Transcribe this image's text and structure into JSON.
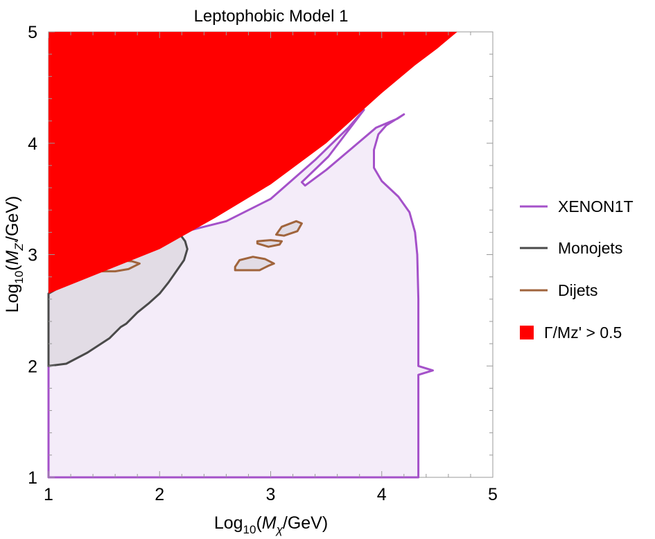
{
  "chart_data": {
    "type": "area",
    "title": "Leptophobic Model 1",
    "xlabel": {
      "prefix": "Log",
      "sub": "10",
      "open": "(",
      "sym": "M",
      "symsub": "χ",
      "suffix": "/GeV)"
    },
    "ylabel": {
      "prefix": "Log",
      "sub": "10",
      "open": "(",
      "sym": "M",
      "symsub": "Z'",
      "suffix": "/GeV)"
    },
    "xlim": [
      1,
      5
    ],
    "ylim": [
      1,
      5
    ],
    "xticks": [
      1,
      2,
      3,
      4,
      5
    ],
    "yticks": [
      1,
      2,
      3,
      4,
      5
    ],
    "minor_ticks_per_major": 5,
    "grid": false,
    "legend_position": "right",
    "series": [
      {
        "name": "XENON1T",
        "kind": "region",
        "color": "#a451c9",
        "fill": "#f4ecf9",
        "boundary": [
          [
            1.0,
            1.0
          ],
          [
            4.33,
            1.0
          ],
          [
            4.33,
            1.92
          ],
          [
            4.46,
            1.96
          ],
          [
            4.33,
            2.0
          ],
          [
            4.33,
            2.6
          ],
          [
            4.32,
            3.0
          ],
          [
            4.3,
            3.2
          ],
          [
            4.25,
            3.38
          ],
          [
            4.15,
            3.52
          ],
          [
            4.0,
            3.66
          ],
          [
            3.93,
            3.78
          ],
          [
            3.93,
            3.94
          ],
          [
            3.97,
            4.08
          ],
          [
            4.04,
            4.16
          ],
          [
            4.2,
            4.26
          ],
          [
            4.14,
            4.22
          ],
          [
            3.95,
            4.14
          ],
          [
            3.76,
            3.98
          ],
          [
            3.5,
            3.76
          ],
          [
            3.31,
            3.62
          ],
          [
            3.28,
            3.65
          ],
          [
            3.52,
            3.88
          ],
          [
            3.84,
            4.3
          ],
          [
            3.7,
            4.14
          ],
          [
            3.4,
            3.85
          ],
          [
            3.0,
            3.5
          ],
          [
            2.6,
            3.3
          ],
          [
            2.2,
            3.2
          ],
          [
            1.8,
            3.0
          ],
          [
            1.4,
            2.85
          ],
          [
            1.0,
            2.65
          ]
        ]
      },
      {
        "name": "Monojets",
        "kind": "region",
        "color": "#4a4a4a",
        "fill": "#e2dce5",
        "boundary": [
          [
            1.0,
            2.0
          ],
          [
            1.16,
            2.02
          ],
          [
            1.35,
            2.12
          ],
          [
            1.55,
            2.25
          ],
          [
            1.65,
            2.35
          ],
          [
            1.7,
            2.38
          ],
          [
            1.8,
            2.48
          ],
          [
            1.9,
            2.56
          ],
          [
            2.0,
            2.65
          ],
          [
            2.08,
            2.75
          ],
          [
            2.15,
            2.85
          ],
          [
            2.22,
            2.95
          ],
          [
            2.25,
            3.05
          ],
          [
            2.23,
            3.12
          ],
          [
            2.14,
            3.24
          ],
          [
            1.9,
            3.08
          ],
          [
            1.6,
            2.96
          ],
          [
            1.3,
            2.82
          ],
          [
            1.0,
            2.65
          ]
        ]
      },
      {
        "name": "Dijets",
        "kind": "contours",
        "color": "#a0643c",
        "fill": "#e2dce5",
        "contours": [
          [
            [
              1.35,
              2.85
            ],
            [
              1.6,
              2.85
            ],
            [
              1.72,
              2.87
            ],
            [
              1.82,
              2.92
            ],
            [
              1.75,
              2.94
            ],
            [
              1.62,
              2.95
            ],
            [
              1.52,
              2.9
            ],
            [
              1.38,
              2.88
            ],
            [
              1.35,
              2.85
            ]
          ],
          [
            [
              2.68,
              2.86
            ],
            [
              2.9,
              2.86
            ],
            [
              2.98,
              2.9
            ],
            [
              3.03,
              2.92
            ],
            [
              2.95,
              2.96
            ],
            [
              2.84,
              2.98
            ],
            [
              2.72,
              2.95
            ],
            [
              2.68,
              2.89
            ],
            [
              2.68,
              2.86
            ]
          ],
          [
            [
              2.88,
              3.1
            ],
            [
              2.98,
              3.07
            ],
            [
              3.08,
              3.09
            ],
            [
              3.1,
              3.12
            ],
            [
              3.0,
              3.13
            ],
            [
              2.88,
              3.12
            ],
            [
              2.88,
              3.1
            ]
          ],
          [
            [
              3.05,
              3.18
            ],
            [
              3.12,
              3.17
            ],
            [
              3.24,
              3.21
            ],
            [
              3.28,
              3.28
            ],
            [
              3.23,
              3.3
            ],
            [
              3.1,
              3.25
            ],
            [
              3.05,
              3.18
            ]
          ]
        ]
      },
      {
        "name": "Γ/Mz' > 0.5",
        "kind": "filled",
        "color": "#ff0000",
        "boundary": [
          [
            1.0,
            2.65
          ],
          [
            1.5,
            2.85
          ],
          [
            2.0,
            3.05
          ],
          [
            2.5,
            3.33
          ],
          [
            3.0,
            3.63
          ],
          [
            3.5,
            4.0
          ],
          [
            3.8,
            4.27
          ],
          [
            4.0,
            4.45
          ],
          [
            4.3,
            4.7
          ],
          [
            4.5,
            4.85
          ],
          [
            4.68,
            5.0
          ],
          [
            1.0,
            5.0
          ]
        ]
      }
    ]
  },
  "colors": {
    "frame": "#999999",
    "axis_text": "#000000"
  }
}
